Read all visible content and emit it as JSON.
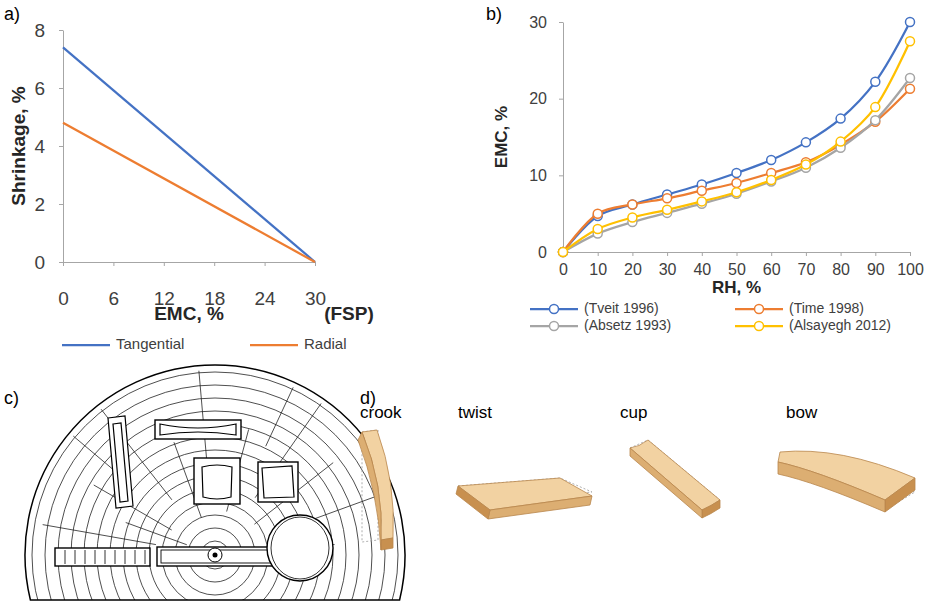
{
  "panel_labels": [
    "a)",
    "b)",
    "c)",
    "d)"
  ],
  "chart_data": [
    {
      "type": "line",
      "x_label": "EMC, %",
      "y_label": "Shrinkage, %",
      "x": [
        0,
        30
      ],
      "xlim": [
        0,
        30
      ],
      "xticks": [
        0,
        6,
        12,
        18,
        24,
        30
      ],
      "ylim": [
        0,
        8
      ],
      "yticks": [
        0,
        2,
        4,
        6,
        8
      ],
      "grid": false,
      "legend": "bottom",
      "annotations": [
        {
          "text": "(FSP)",
          "x": 30
        }
      ],
      "series": [
        {
          "name": "Tangential",
          "color": "#4472c4",
          "values": [
            7.4,
            0
          ]
        },
        {
          "name": "Radial",
          "color": "#ed7d31",
          "values": [
            4.8,
            0
          ]
        }
      ]
    },
    {
      "type": "line",
      "x_label": "RH, %",
      "y_label": "EMC, %",
      "x": [
        0,
        10,
        20,
        30,
        40,
        50,
        60,
        70,
        80,
        90,
        100
      ],
      "xlim": [
        0,
        100
      ],
      "xticks": [
        0,
        10,
        20,
        30,
        40,
        50,
        60,
        70,
        80,
        90,
        100
      ],
      "ylim": [
        0,
        30
      ],
      "yticks": [
        0,
        10,
        20,
        30
      ],
      "grid": false,
      "legend": "bottom",
      "marker": "circle",
      "line_style": "smooth",
      "series": [
        {
          "name": "(Tveit 1996)",
          "color": "#4472c4",
          "values": [
            0,
            4.7,
            6.2,
            7.5,
            8.8,
            10.3,
            12,
            14.3,
            17.4,
            22.2,
            30
          ]
        },
        {
          "name": "(Time 1998)",
          "color": "#ed7d31",
          "values": [
            0,
            5,
            6.2,
            7,
            8,
            9,
            10.3,
            11.7,
            14,
            17,
            21.3
          ]
        },
        {
          "name": "(Absetz 1993)",
          "color": "#a5a5a5",
          "values": [
            0,
            2.4,
            3.9,
            5.1,
            6.3,
            7.6,
            9.2,
            11,
            13.6,
            17.2,
            22.7
          ]
        },
        {
          "name": "(Alsayegh 2012)",
          "color": "#ffc000",
          "values": [
            0,
            3,
            4.5,
            5.5,
            6.6,
            7.8,
            9.4,
            11.4,
            14.4,
            18.9,
            27.5
          ]
        }
      ]
    }
  ],
  "warp_types": [
    "crook",
    "twist",
    "cup",
    "bow"
  ]
}
